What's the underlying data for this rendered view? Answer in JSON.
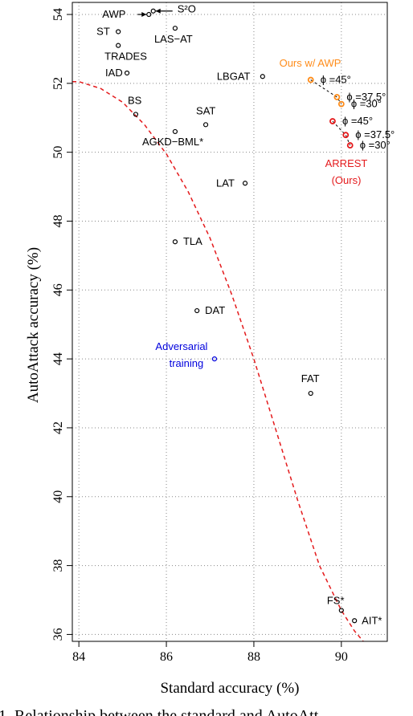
{
  "chart_data": {
    "type": "scatter",
    "xlabel": "Standard accuracy (%)",
    "ylabel": "AutoAttack accuracy (%)",
    "xlim": [
      83.85,
      91.05
    ],
    "ylim": [
      35.8,
      54.35
    ],
    "xticks": [
      "84",
      "86",
      "88",
      "90"
    ],
    "yticks": [
      "36",
      "38",
      "40",
      "42",
      "44",
      "46",
      "48",
      "50",
      "52",
      "54"
    ],
    "grid": true,
    "colors": {
      "baseline": "#000000",
      "ours": "#e41a1c",
      "ours_awp": "#ff8c1a",
      "trend": "#e41a1c",
      "annotation": "#0000dd"
    },
    "points": [
      {
        "label": "AWP",
        "x": 85.6,
        "y": 54.0
      },
      {
        "label": "S²O",
        "x": 85.7,
        "y": 54.1
      },
      {
        "label": "ST",
        "x": 84.9,
        "y": 53.5
      },
      {
        "label": "LAS−AT",
        "x": 86.2,
        "y": 53.6
      },
      {
        "label": "TRADES",
        "x": 84.9,
        "y": 53.1
      },
      {
        "label": "IAD",
        "x": 85.1,
        "y": 52.3
      },
      {
        "label": "LBGAT",
        "x": 88.2,
        "y": 52.2
      },
      {
        "label": "BS",
        "x": 85.3,
        "y": 51.1
      },
      {
        "label": "SAT",
        "x": 86.9,
        "y": 50.8
      },
      {
        "label": "AGKD−BML*",
        "x": 86.2,
        "y": 50.6
      },
      {
        "label": "LAT",
        "x": 87.8,
        "y": 49.1
      },
      {
        "label": "TLA",
        "x": 86.2,
        "y": 47.4
      },
      {
        "label": "DAT",
        "x": 86.7,
        "y": 45.4
      },
      {
        "label": "Adversarial training",
        "x": 87.1,
        "y": 44.0
      },
      {
        "label": "FAT",
        "x": 89.3,
        "y": 43.0
      },
      {
        "label": "FS*",
        "x": 90.0,
        "y": 36.7
      },
      {
        "label": "AIT*",
        "x": 90.3,
        "y": 36.4
      }
    ],
    "ours_awp": {
      "name": "Ours w/ AWP",
      "points": [
        {
          "label": "ϕ =45°",
          "x": 89.3,
          "y": 52.1
        },
        {
          "label": "ϕ =37.5°",
          "x": 89.9,
          "y": 51.6
        },
        {
          "label": "ϕ =30°",
          "x": 90.0,
          "y": 51.4
        }
      ]
    },
    "ours": {
      "name": "ARREST (Ours)",
      "points": [
        {
          "label": "ϕ =45°",
          "x": 89.8,
          "y": 50.9
        },
        {
          "label": "ϕ =37.5°",
          "x": 90.1,
          "y": 50.5
        },
        {
          "label": "ϕ =30°",
          "x": 90.2,
          "y": 50.2
        }
      ]
    },
    "trend": [
      [
        83.85,
        52.05
      ],
      [
        84.0,
        52.05
      ],
      [
        84.5,
        51.85
      ],
      [
        85.0,
        51.45
      ],
      [
        85.5,
        50.8
      ],
      [
        86.0,
        49.95
      ],
      [
        86.5,
        48.85
      ],
      [
        87.0,
        47.5
      ],
      [
        87.5,
        45.85
      ],
      [
        88.0,
        44.0
      ],
      [
        88.5,
        41.95
      ],
      [
        89.0,
        39.9
      ],
      [
        89.5,
        38.0
      ],
      [
        90.0,
        36.7
      ],
      [
        90.3,
        36.1
      ],
      [
        90.5,
        35.8
      ]
    ]
  },
  "caption_fragment": "1. Relationship between the standard and AutoAtt"
}
